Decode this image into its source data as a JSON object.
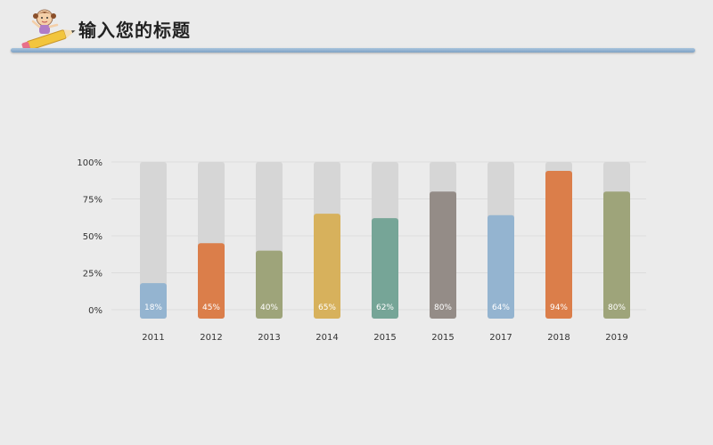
{
  "header": {
    "title": "输入您的标题"
  },
  "chart_data": {
    "type": "bar",
    "categories": [
      "2011",
      "2012",
      "2013",
      "2014",
      "2015",
      "2015",
      "2017",
      "2018",
      "2019"
    ],
    "values": [
      18,
      45,
      40,
      65,
      62,
      80,
      64,
      94,
      80
    ],
    "value_labels": [
      "18%",
      "45%",
      "40%",
      "65%",
      "62%",
      "80%",
      "64%",
      "94%",
      "80%"
    ],
    "colors": [
      "#94b4d0",
      "#db7e4a",
      "#9ea47a",
      "#d7b15c",
      "#76a597",
      "#948c87",
      "#94b4d0",
      "#db7e4a",
      "#9ea47a"
    ],
    "background_bar_color": "#d6d6d6",
    "yticks": [
      "0%",
      "25%",
      "50%",
      "75%",
      "100%"
    ],
    "ylim": [
      0,
      100
    ],
    "grid": true
  }
}
